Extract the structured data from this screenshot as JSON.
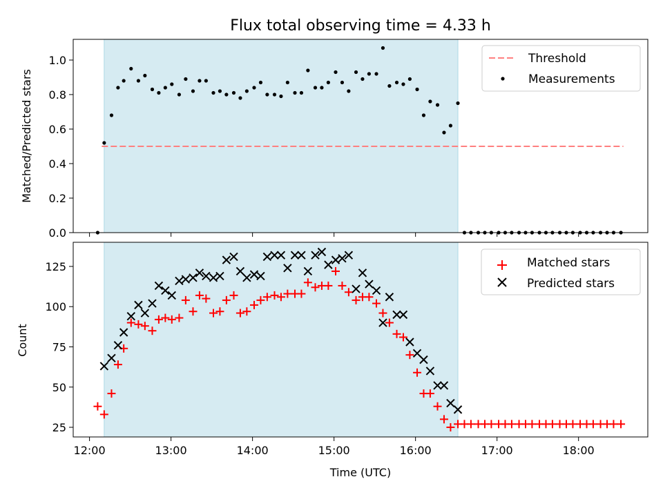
{
  "chart_data": [
    {
      "type": "scatter",
      "title": "Flux total observing time = 4.33 h",
      "ylabel": "Matched/Predicted stars",
      "xlabel": "",
      "x_unit": "hours (UTC)",
      "xlim": [
        11.8,
        18.85
      ],
      "ylim": [
        0,
        1.12
      ],
      "yticks": [
        0.0,
        0.2,
        0.4,
        0.6,
        0.8,
        1.0
      ],
      "ytick_labels": [
        "0.0",
        "0.2",
        "0.4",
        "0.6",
        "0.8",
        "1.0"
      ],
      "shaded_interval": [
        12.18,
        16.52
      ],
      "legend": {
        "position": "top-right",
        "entries": [
          "Threshold",
          "Measurements"
        ]
      },
      "series": [
        {
          "name": "Threshold",
          "style": "dashed-line",
          "color": "#ff7f7f",
          "x": [
            12.15,
            18.55
          ],
          "y": [
            0.5,
            0.5
          ]
        },
        {
          "name": "Measurements",
          "style": "dot",
          "color": "#000000",
          "x": [
            12.1,
            12.18,
            12.27,
            12.35,
            12.42,
            12.51,
            12.6,
            12.68,
            12.77,
            12.85,
            12.93,
            13.01,
            13.1,
            13.18,
            13.27,
            13.35,
            13.43,
            13.52,
            13.6,
            13.68,
            13.77,
            13.85,
            13.93,
            14.02,
            14.1,
            14.18,
            14.27,
            14.35,
            14.43,
            14.52,
            14.6,
            14.68,
            14.77,
            14.85,
            14.93,
            15.02,
            15.1,
            15.18,
            15.27,
            15.35,
            15.43,
            15.52,
            15.6,
            15.68,
            15.77,
            15.85,
            15.93,
            16.02,
            16.1,
            16.18,
            16.27,
            16.35,
            16.43,
            16.52,
            16.6,
            16.68,
            16.77,
            16.85,
            16.93,
            17.02,
            17.1,
            17.18,
            17.27,
            17.35,
            17.43,
            17.52,
            17.6,
            17.68,
            17.77,
            17.85,
            17.93,
            18.02,
            18.1,
            18.18,
            18.27,
            18.35,
            18.43,
            18.52
          ],
          "y": [
            0.0,
            0.52,
            0.68,
            0.84,
            0.88,
            0.95,
            0.88,
            0.91,
            0.83,
            0.81,
            0.84,
            0.86,
            0.8,
            0.89,
            0.82,
            0.88,
            0.88,
            0.81,
            0.82,
            0.8,
            0.81,
            0.78,
            0.82,
            0.84,
            0.87,
            0.8,
            0.8,
            0.79,
            0.87,
            0.81,
            0.81,
            0.94,
            0.84,
            0.84,
            0.87,
            0.93,
            0.87,
            0.82,
            0.93,
            0.89,
            0.92,
            0.92,
            1.07,
            0.85,
            0.87,
            0.86,
            0.89,
            0.83,
            0.68,
            0.76,
            0.74,
            0.58,
            0.62,
            0.75,
            0.0,
            0.0,
            0.0,
            0.0,
            0.0,
            0.0,
            0.0,
            0.0,
            0.0,
            0.0,
            0.0,
            0.0,
            0.0,
            0.0,
            0.0,
            0.0,
            0.0,
            0.0,
            0.0,
            0.0,
            0.0,
            0.0,
            0.0,
            0.0
          ]
        }
      ]
    },
    {
      "type": "scatter",
      "title": "",
      "ylabel": "Count",
      "xlabel": "Time (UTC)",
      "x_unit": "hours (UTC)",
      "xlim": [
        11.8,
        18.85
      ],
      "ylim": [
        19,
        140
      ],
      "xticks": [
        12,
        13,
        14,
        15,
        16,
        17,
        18
      ],
      "xtick_labels": [
        "12:00",
        "13:00",
        "14:00",
        "15:00",
        "16:00",
        "17:00",
        "18:00"
      ],
      "yticks": [
        25,
        50,
        75,
        100,
        125
      ],
      "ytick_labels": [
        "25",
        "50",
        "75",
        "100",
        "125"
      ],
      "shaded_interval": [
        12.18,
        16.52
      ],
      "legend": {
        "position": "top-right",
        "entries": [
          "Matched stars",
          "Predicted stars"
        ]
      },
      "series": [
        {
          "name": "Matched stars",
          "marker": "plus",
          "color": "#ff0000",
          "x": [
            12.1,
            12.18,
            12.27,
            12.35,
            12.42,
            12.51,
            12.6,
            12.68,
            12.77,
            12.85,
            12.93,
            13.01,
            13.1,
            13.18,
            13.27,
            13.35,
            13.43,
            13.52,
            13.6,
            13.68,
            13.77,
            13.85,
            13.93,
            14.02,
            14.1,
            14.18,
            14.27,
            14.35,
            14.43,
            14.52,
            14.6,
            14.68,
            14.77,
            14.85,
            14.93,
            15.02,
            15.1,
            15.18,
            15.27,
            15.35,
            15.43,
            15.52,
            15.6,
            15.68,
            15.77,
            15.85,
            15.93,
            16.02,
            16.1,
            16.18,
            16.27,
            16.35,
            16.43,
            16.52,
            16.6,
            16.68,
            16.77,
            16.85,
            16.93,
            17.02,
            17.1,
            17.18,
            17.27,
            17.35,
            17.43,
            17.52,
            17.6,
            17.68,
            17.77,
            17.85,
            17.93,
            18.02,
            18.1,
            18.18,
            18.27,
            18.35,
            18.43,
            18.52
          ],
          "y": [
            38,
            33,
            46,
            64,
            74,
            90,
            89,
            88,
            85,
            92,
            93,
            92,
            93,
            104,
            97,
            107,
            105,
            96,
            97,
            104,
            107,
            96,
            97,
            101,
            104,
            106,
            107,
            106,
            108,
            108,
            108,
            115,
            112,
            113,
            113,
            122,
            113,
            109,
            104,
            106,
            106,
            102,
            96,
            90,
            83,
            81,
            70,
            59,
            46,
            46,
            38,
            30,
            25,
            27,
            27,
            27,
            27,
            27,
            27,
            27,
            27,
            27,
            27,
            27,
            27,
            27,
            27,
            27,
            27,
            27,
            27,
            27,
            27,
            27,
            27,
            27,
            27,
            27
          ]
        },
        {
          "name": "Predicted stars",
          "marker": "x",
          "color": "#000000",
          "x": [
            12.18,
            12.27,
            12.35,
            12.42,
            12.51,
            12.6,
            12.68,
            12.77,
            12.85,
            12.93,
            13.01,
            13.1,
            13.18,
            13.27,
            13.35,
            13.43,
            13.52,
            13.6,
            13.68,
            13.77,
            13.85,
            13.93,
            14.02,
            14.1,
            14.18,
            14.27,
            14.35,
            14.43,
            14.52,
            14.6,
            14.68,
            14.77,
            14.85,
            14.93,
            15.02,
            15.1,
            15.18,
            15.27,
            15.35,
            15.43,
            15.52,
            15.6,
            15.68,
            15.77,
            15.85,
            15.93,
            16.02,
            16.1,
            16.18,
            16.27,
            16.35,
            16.43,
            16.52
          ],
          "y": [
            63,
            68,
            76,
            84,
            94,
            101,
            96,
            102,
            113,
            110,
            107,
            116,
            117,
            118,
            121,
            119,
            118,
            119,
            129,
            131,
            122,
            118,
            120,
            119,
            131,
            132,
            132,
            124,
            132,
            132,
            122,
            132,
            134,
            126,
            129,
            130,
            132,
            111,
            121,
            114,
            110,
            90,
            106,
            95,
            95,
            78,
            71,
            67,
            60,
            51,
            51,
            40,
            36
          ]
        }
      ]
    }
  ]
}
